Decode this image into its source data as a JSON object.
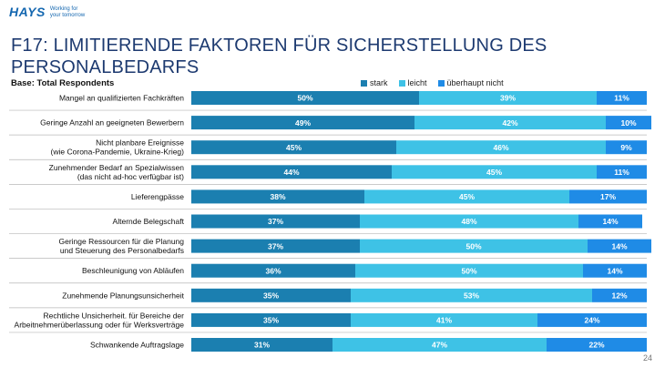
{
  "header": {
    "logo_text": "HAYS",
    "tagline_line1": "Working for",
    "tagline_line2": "your tomorrow"
  },
  "title_line1": "F17: LIMITIERENDE FAKTOREN FÜR SICHERSTELLUNG DES",
  "title_line2": "PERSONALBEDARFS",
  "base_label": "Base:  Total Respondents",
  "page_number": "24",
  "colors": {
    "stark": "#1b7fb0",
    "leicht": "#3ec2e6",
    "ueberhaupt": "#1f8be6",
    "title": "#1d3a70"
  },
  "chart_data": {
    "type": "bar",
    "orientation": "horizontal",
    "stacked": true,
    "percent_scale": [
      0,
      100
    ],
    "legend_position": "top-right",
    "legend": [
      "stark",
      "leicht",
      "überhaupt nicht"
    ],
    "categories": [
      [
        "Mangel an qualifizierten Fachkräften"
      ],
      [
        "Geringe Anzahl an geeigneten Bewerbern"
      ],
      [
        "Nicht planbare Ereignisse",
        "(wie Corona-Pandemie, Ukraine-Krieg)"
      ],
      [
        "Zunehmender Bedarf an Spezialwissen",
        "(das nicht ad-hoc verfügbar ist)"
      ],
      [
        "Lieferengpässe"
      ],
      [
        "Alternde Belegschaft"
      ],
      [
        "Geringe Ressourcen für die Planung",
        "und Steuerung des Personalbedarfs"
      ],
      [
        "Beschleunigung von Abläufen"
      ],
      [
        "Zunehmende Planungsunsicherheit"
      ],
      [
        "Rechtliche Unsicherheit. für Bereiche der",
        "Arbeitnehmerüberlassung oder für Werksverträge"
      ],
      [
        "Schwankende Auftragslage"
      ]
    ],
    "series": [
      {
        "name": "stark",
        "values": [
          50,
          49,
          45,
          44,
          38,
          37,
          37,
          36,
          35,
          35,
          31
        ]
      },
      {
        "name": "leicht",
        "values": [
          39,
          42,
          46,
          45,
          45,
          48,
          50,
          50,
          53,
          41,
          47
        ]
      },
      {
        "name": "überhaupt nicht",
        "values": [
          11,
          10,
          9,
          11,
          17,
          14,
          14,
          14,
          12,
          24,
          22
        ]
      }
    ]
  }
}
